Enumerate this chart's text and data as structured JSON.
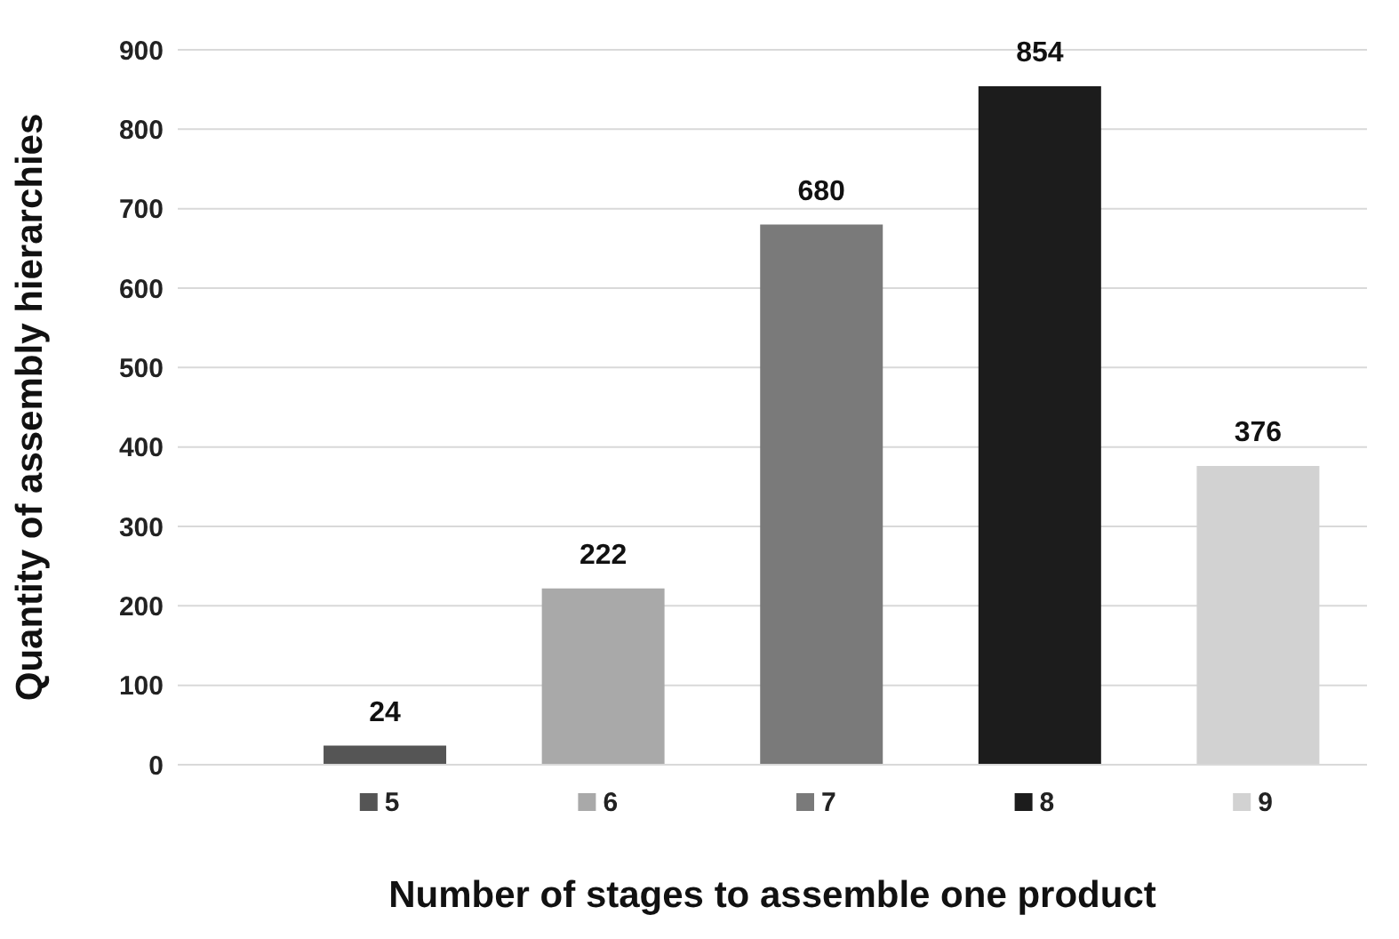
{
  "chart_data": {
    "type": "bar",
    "xlabel": "Number of stages to assemble one product",
    "ylabel": "Quantity of assembly hierarchies",
    "categories": [
      "5",
      "6",
      "7",
      "8",
      "9"
    ],
    "values": [
      24,
      222,
      680,
      854,
      376
    ],
    "colors": [
      "#555555",
      "#a9a9a9",
      "#7a7a7a",
      "#1c1c1c",
      "#d2d2d2"
    ],
    "ylim": [
      0,
      900
    ],
    "yticks": [
      0,
      100,
      200,
      300,
      400,
      500,
      600,
      700,
      800,
      900
    ],
    "grid": "y",
    "data_labels": true
  }
}
